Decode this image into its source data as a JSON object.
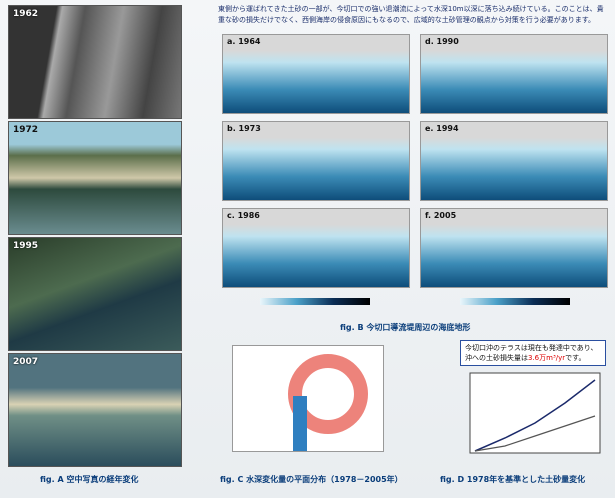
{
  "paragraph": "東側から運ばれてきた土砂の一部が、今切口での強い退潮流によって水深10m以深に落ち込み続けている。このことは、貴重な砂の損失だけでなく、西側海岸の侵食原因にもなるので、広域的な土砂管理の観点から対策を行う必要があります。",
  "fig_a": {
    "photos": [
      "1962",
      "1972",
      "1995",
      "2007"
    ],
    "caption": "fig. A 空中写真の経年変化"
  },
  "fig_b": {
    "panels": [
      "a. 1964",
      "b. 1973",
      "c. 1986",
      "d. 1990",
      "e. 1994",
      "f. 2005"
    ],
    "caption": "fig. B 今切口導流堤周辺の海底地形"
  },
  "fig_c": {
    "caption": "fig. C 水深変化量の平面分布（1978－2005年）"
  },
  "fig_d": {
    "callout": {
      "text": "今切口沖のテラスは現在も発達中であり、沖への土砂損失量は",
      "highlight": "3.6万m³/yr",
      "tail": "です。"
    },
    "caption": "fig. D 1978年を基準とした土砂量変化"
  }
}
